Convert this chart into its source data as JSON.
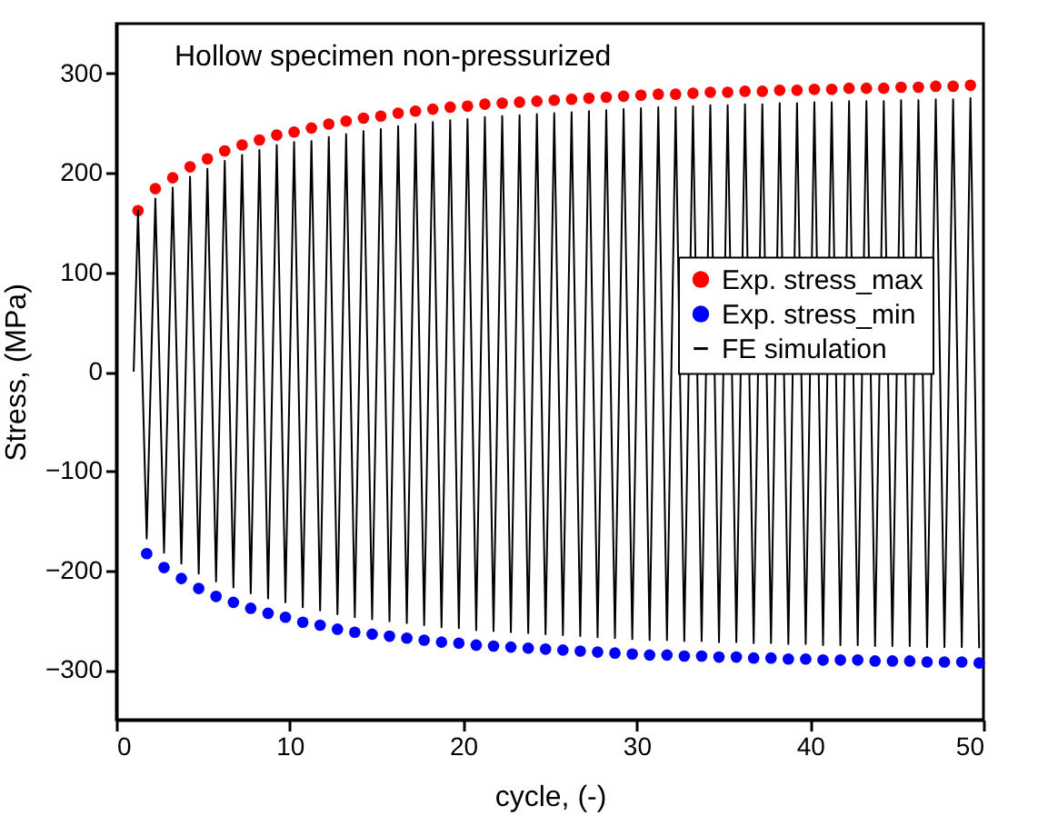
{
  "chart_data": {
    "type": "scatter",
    "title": "Hollow specimen non-pressurized",
    "xlabel": "cycle, (-)",
    "ylabel": "Stress, (MPa)",
    "xlim": [
      0,
      50
    ],
    "xticks": [
      0,
      10,
      20,
      30,
      40,
      50
    ],
    "ylim": [
      -350,
      350
    ],
    "yticks": [
      -300,
      -200,
      -100,
      0,
      100,
      200,
      300
    ],
    "legend": "right",
    "series": [
      {
        "name": "Exp. stress_max",
        "marker": "circle",
        "color": "#ff0000",
        "x": [
          1.25,
          2.25,
          3.25,
          4.25,
          5.25,
          6.25,
          7.25,
          8.25,
          9.25,
          10.25,
          11.25,
          12.25,
          13.25,
          14.25,
          15.25,
          16.25,
          17.25,
          18.25,
          19.25,
          20.25,
          21.25,
          22.25,
          23.25,
          24.25,
          25.25,
          26.25,
          27.25,
          28.25,
          29.25,
          30.25,
          31.25,
          32.25,
          33.25,
          34.25,
          35.25,
          36.25,
          37.25,
          38.25,
          39.25,
          40.25,
          41.25,
          42.25,
          43.25,
          44.25,
          45.25,
          46.25,
          47.25,
          48.25,
          49.25
        ],
        "values": [
          162,
          184,
          195,
          206,
          214,
          222,
          228,
          233,
          238,
          241,
          245,
          249,
          252,
          255,
          257,
          260,
          262,
          264,
          266,
          267,
          269,
          270,
          271,
          272,
          273,
          274,
          275,
          276,
          277,
          278,
          279,
          279,
          280,
          281,
          281,
          282,
          282,
          283,
          283,
          284,
          284,
          285,
          285,
          285,
          286,
          286,
          287,
          287,
          288
        ]
      },
      {
        "name": "Exp. stress_min",
        "marker": "circle",
        "color": "#0000ff",
        "x": [
          1.75,
          2.75,
          3.75,
          4.75,
          5.75,
          6.75,
          7.75,
          8.75,
          9.75,
          10.75,
          11.75,
          12.75,
          13.75,
          14.75,
          15.75,
          16.75,
          17.75,
          18.75,
          19.75,
          20.75,
          21.75,
          22.75,
          23.75,
          24.75,
          25.75,
          26.75,
          27.75,
          28.75,
          29.75,
          30.75,
          31.75,
          32.75,
          33.75,
          34.75,
          35.75,
          36.75,
          37.75,
          38.75,
          39.75,
          40.75,
          41.75,
          42.75,
          43.75,
          44.75,
          45.75,
          46.75,
          47.75,
          48.75,
          49.75
        ],
        "values": [
          -183,
          -197,
          -208,
          -218,
          -226,
          -232,
          -238,
          -243,
          -247,
          -252,
          -255,
          -259,
          -262,
          -264,
          -266,
          -268,
          -270,
          -272,
          -273,
          -275,
          -276,
          -277,
          -278,
          -279,
          -280,
          -281,
          -282,
          -283,
          -284,
          -285,
          -285,
          -286,
          -286,
          -287,
          -287,
          -288,
          -288,
          -289,
          -289,
          -290,
          -290,
          -290,
          -291,
          -291,
          -291,
          -292,
          -292,
          -292,
          -293
        ]
      },
      {
        "name": "FE simulation",
        "type": "line",
        "marker": "none",
        "line_style": "solid",
        "color": "#000000",
        "x": [
          1,
          1.25,
          1.75,
          2.25,
          2.75,
          3.25,
          3.75,
          4.25,
          4.75,
          5.25,
          5.75,
          6.25,
          6.75,
          7.25,
          7.75,
          8.25,
          8.75,
          9.25,
          9.75,
          10.25,
          10.75,
          11.25,
          11.75,
          12.25,
          12.75,
          13.25,
          13.75,
          14.25,
          14.75,
          15.25,
          15.75,
          16.25,
          16.75,
          17.25,
          17.75,
          18.25,
          18.75,
          19.25,
          19.75,
          20.25,
          20.75,
          21.25,
          21.75,
          22.25,
          22.75,
          23.25,
          23.75,
          24.25,
          24.75,
          25.25,
          25.75,
          26.25,
          26.75,
          27.25,
          27.75,
          28.25,
          28.75,
          29.25,
          29.75,
          30.25,
          30.75,
          31.25,
          31.75,
          32.25,
          32.75,
          33.25,
          33.75,
          34.25,
          34.75,
          35.25,
          35.75,
          36.25,
          36.75,
          37.25,
          37.75,
          38.25,
          38.75,
          39.25,
          39.75,
          40.25,
          40.75,
          41.25,
          41.75,
          42.25,
          42.75,
          43.25,
          43.75,
          44.25,
          44.75,
          45.25,
          45.75,
          46.25,
          46.75,
          47.25,
          47.75,
          48.25,
          48.75,
          49.25,
          49.75
        ],
        "values": [
          0,
          162,
          -168,
          174,
          -182,
          185,
          -193,
          196,
          -203,
          204,
          -211,
          212,
          -217,
          218,
          -223,
          223,
          -228,
          228,
          -232,
          231,
          -237,
          232,
          -240,
          236,
          -244,
          239,
          -247,
          242,
          -249,
          244,
          -251,
          247,
          -253,
          249,
          -255,
          251,
          -257,
          253,
          -258,
          254,
          -260,
          256,
          -261,
          257,
          -262,
          258,
          -263,
          259,
          -264,
          260,
          -265,
          261,
          -266,
          262,
          -267,
          263,
          -268,
          264,
          -269,
          265,
          -270,
          266,
          -270,
          266,
          -271,
          267,
          -271,
          268,
          -272,
          268,
          -272,
          269,
          -273,
          269,
          -273,
          270,
          -274,
          270,
          -274,
          271,
          -275,
          271,
          -275,
          272,
          -275,
          272,
          -276,
          272,
          -276,
          273,
          -276,
          273,
          -277,
          274,
          -277,
          274,
          -277,
          275,
          -278
        ]
      }
    ]
  }
}
